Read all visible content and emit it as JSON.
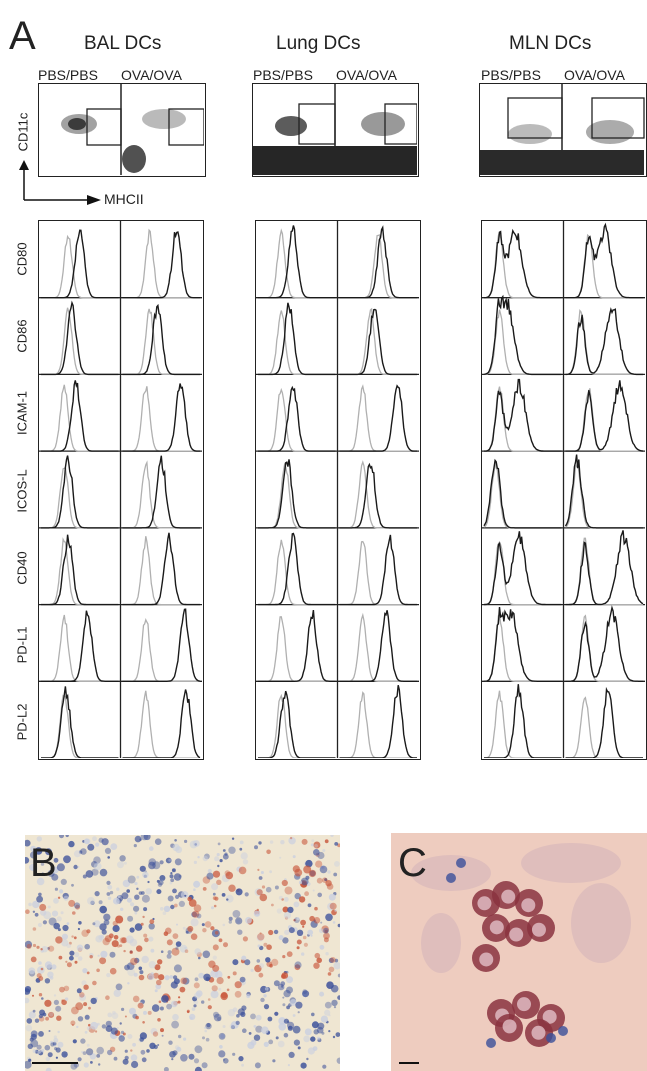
{
  "figure": {
    "panels": {
      "a": "A",
      "b": "B",
      "c": "C"
    },
    "groups": [
      {
        "title": "BAL DCs",
        "conditions": [
          "PBS/PBS",
          "OVA/OVA"
        ]
      },
      {
        "title": "Lung DCs",
        "conditions": [
          "PBS/PBS",
          "OVA/OVA"
        ]
      },
      {
        "title": "MLN DCs",
        "conditions": [
          "PBS/PBS",
          "OVA/OVA"
        ]
      }
    ],
    "dotplot_axes": {
      "y": "CD11c",
      "x": "MHCII"
    },
    "markers": [
      "CD80",
      "CD86",
      "ICAM-1",
      "ICOS-L",
      "CD40",
      "PD-L1",
      "PD-L2"
    ],
    "colors": {
      "isotype": "#b0b0b0",
      "stain": "#1a1a1a",
      "frame": "#222222",
      "tissue_bg": "#efe6d2",
      "cytospin_bg": "#eeccbf",
      "red_stain": "#c8553a",
      "blue_stain": "#3a4f9a"
    }
  }
}
